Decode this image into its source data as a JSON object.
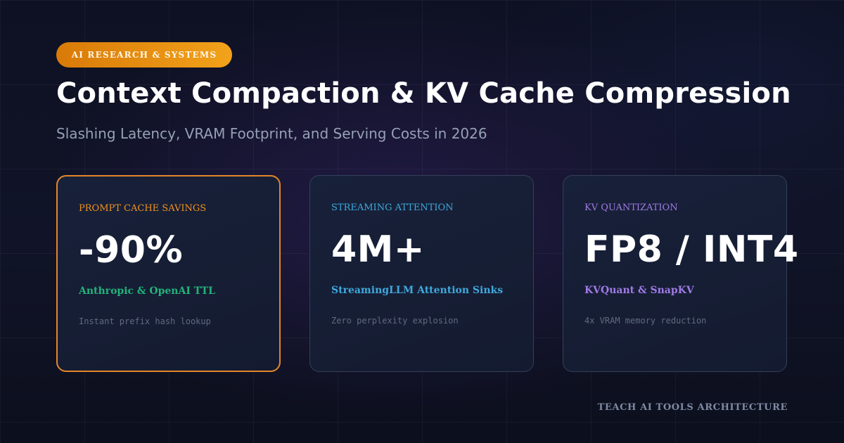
{
  "badge": "AI RESEARCH & SYSTEMS",
  "title": "Context Compaction & KV Cache Compression",
  "subtitle": "Slashing Latency, VRAM Footprint, and Serving Costs in 2026",
  "cards": [
    {
      "label": "PROMPT CACHE SAVINGS",
      "value": "-90%",
      "source": "Anthropic & OpenAI TTL",
      "description": "Instant prefix hash lookup",
      "accent": "#e4862a",
      "label_color": "#f0921f",
      "source_color": "#22b37a"
    },
    {
      "label": "STREAMING ATTENTION",
      "value": "4M+",
      "source": "StreamingLLM Attention Sinks",
      "description": "Zero perplexity explosion",
      "accent": "#334059",
      "label_color": "#3ea9dc",
      "source_color": "#3ea9dc"
    },
    {
      "label": "KV QUANTIZATION",
      "value": "FP8 / INT4",
      "source": "KVQuant & SnapKV",
      "description": "4x VRAM memory reduction",
      "accent": "#334059",
      "label_color": "#a07ae6",
      "source_color": "#a07ae6"
    }
  ],
  "footer": "TEACH AI TOOLS ARCHITECTURE"
}
